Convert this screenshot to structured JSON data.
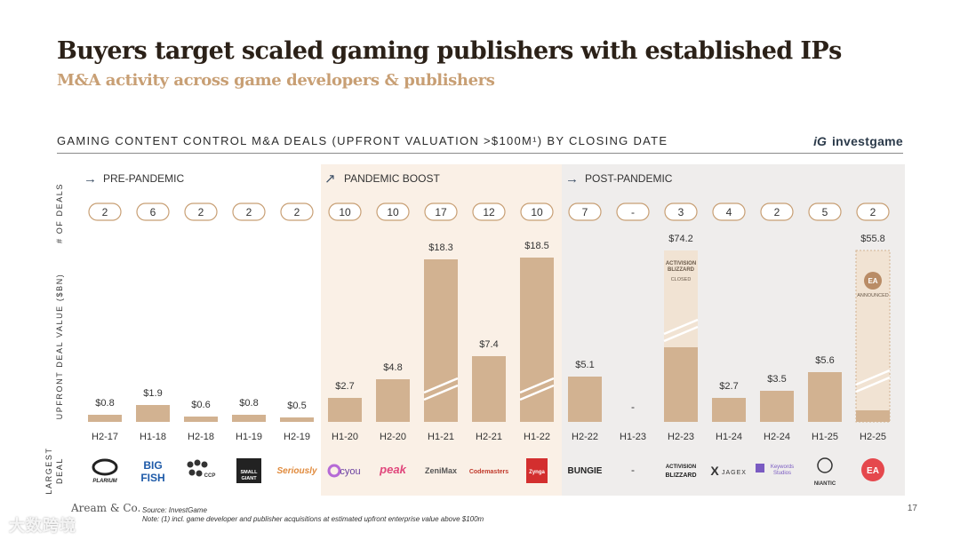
{
  "header": {
    "title": "Buyers target scaled gaming publishers with established IPs",
    "subtitle": "M&A activity across game developers & publishers"
  },
  "chart_header": {
    "title": "GAMING CONTENT CONTROL M&A DEALS (UPFRONT VALUATION >$100M¹) BY CLOSING DATE",
    "brand_mark": "iG",
    "brand_name": "investgame"
  },
  "row_labels": {
    "deals": "# OF DEALS",
    "value": "UPFRONT DEAL VALUE ($BN)",
    "largest": "LARGEST DEAL"
  },
  "colors": {
    "bar": "#d2b291",
    "bar_light": "#f1e3d3",
    "pandemic_bg": "#faf0e6",
    "post_bg": "#efedec",
    "pill_border": "#c89f74",
    "title": "#2b2118",
    "subtitle": "#c89f74"
  },
  "chart_data": {
    "type": "bar",
    "xlabel": "",
    "ylabel": "UPFRONT DEAL VALUE ($BN)",
    "periods": [
      {
        "label": "PRE-PANDEMIC",
        "arrow": "→",
        "start": 0,
        "end": 4
      },
      {
        "label": "PANDEMIC BOOST",
        "arrow": "↗",
        "start": 5,
        "end": 9
      },
      {
        "label": "POST-PANDEMIC",
        "arrow": "→",
        "start": 10,
        "end": 16
      }
    ],
    "categories": [
      "H2-17",
      "H1-18",
      "H2-18",
      "H1-19",
      "H2-19",
      "H1-20",
      "H2-20",
      "H1-21",
      "H2-21",
      "H1-22",
      "H2-22",
      "H1-23",
      "H2-23",
      "H1-24",
      "H2-24",
      "H1-25",
      "H2-25"
    ],
    "values": [
      0.8,
      1.9,
      0.6,
      0.8,
      0.5,
      2.7,
      4.8,
      18.3,
      7.4,
      18.5,
      5.1,
      null,
      74.2,
      2.7,
      3.5,
      5.6,
      55.8
    ],
    "value_labels": [
      "$0.8",
      "$1.9",
      "$0.6",
      "$0.8",
      "$0.5",
      "$2.7",
      "$4.8",
      "$18.3",
      "$7.4",
      "$18.5",
      "$5.1",
      "-",
      "$74.2",
      "$2.7",
      "$3.5",
      "$5.6",
      "$55.8"
    ],
    "deal_counts": [
      "2",
      "6",
      "2",
      "2",
      "2",
      "10",
      "10",
      "17",
      "12",
      "10",
      "7",
      "-",
      "3",
      "4",
      "2",
      "5",
      "2"
    ],
    "largest_deals": [
      "PLARIUM",
      "BIG FISH",
      "CCP",
      "SMALL GIANT",
      "Seriously",
      "cyou",
      "peak",
      "ZeniMax",
      "Codemasters",
      "Zynga",
      "BUNGIE",
      "-",
      "ACTIVISION BLIZZARD",
      "JAGEX",
      "Keywords Studios",
      "NIANTIC",
      "EA"
    ],
    "split_values": [
      {
        "index": 12,
        "status": "CLOSED",
        "logo": "ACTIVISION BLIZZARD"
      },
      {
        "index": 16,
        "status": "ANNOUNCED",
        "logo": "EA"
      }
    ]
  },
  "footer": {
    "source": "Source: InvestGame",
    "note": "Note: (1) incl. game developer and publisher acquisitions at estimated upfront enterprise value above $100m",
    "logo": "Aream & Co.",
    "page_number": "17",
    "watermark": "大数跨境"
  }
}
